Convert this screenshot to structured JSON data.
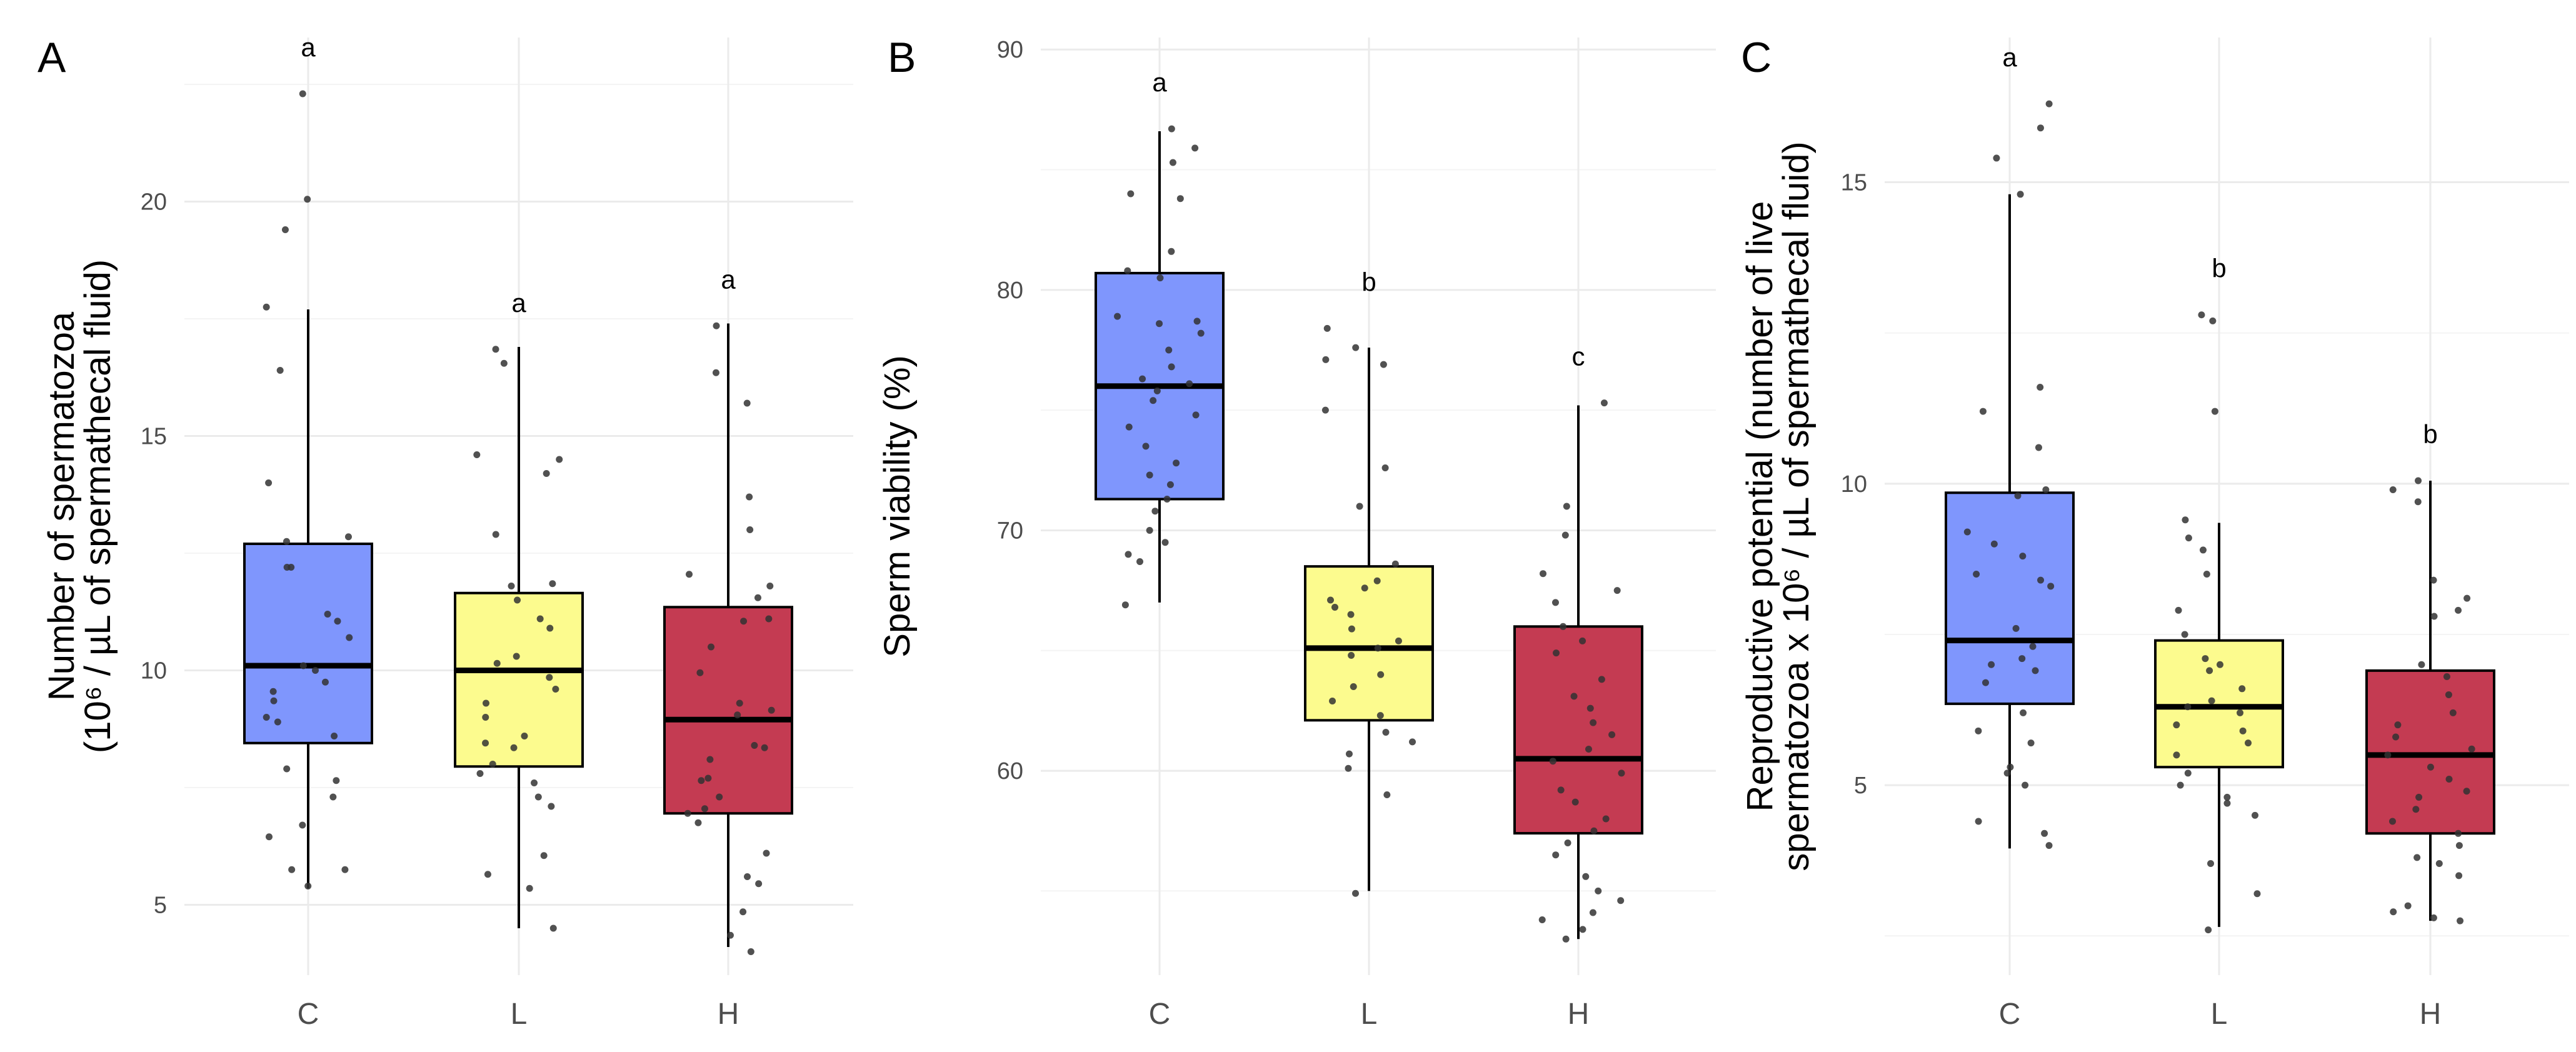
{
  "colors": {
    "C": "#7f96fd",
    "L": "#fcfb8e",
    "H": "#c43b52",
    "grid": "#ebebeb",
    "point": "#333333",
    "box_stroke": "#000000"
  },
  "chart_data": [
    {
      "type": "box",
      "panel": "A",
      "categories": [
        "C",
        "L",
        "H"
      ],
      "ylabel": [
        "Number of spermatozoa",
        "(10⁶ / µL of spermathecal fluid)"
      ],
      "ylim": [
        3.5,
        23.5
      ],
      "yticks": [
        5,
        10,
        15,
        20
      ],
      "boxes": [
        {
          "q1": 8.45,
          "median": 10.1,
          "q3": 12.7,
          "whisker_low": 5.35,
          "whisker_high": 17.7,
          "letter": "a"
        },
        {
          "q1": 7.95,
          "median": 10.0,
          "q3": 11.65,
          "whisker_low": 4.5,
          "whisker_high": 16.9,
          "letter": "a"
        },
        {
          "q1": 6.95,
          "median": 8.95,
          "q3": 11.35,
          "whisker_low": 4.1,
          "whisker_high": 17.4,
          "letter": "a"
        }
      ],
      "points": [
        [
          22.3,
          20.05,
          19.4,
          17.75,
          16.4,
          14.0,
          12.85,
          12.75,
          12.2,
          12.2,
          11.2,
          11.05,
          10.7,
          10.1,
          10.0,
          9.75,
          9.55,
          9.35,
          9.0,
          8.9,
          8.6,
          7.9,
          7.65,
          7.3,
          6.7,
          6.45,
          5.75,
          5.75,
          5.4
        ],
        [
          16.85,
          16.55,
          14.6,
          14.5,
          14.2,
          12.9,
          11.85,
          11.8,
          11.5,
          11.1,
          10.9,
          10.3,
          10.15,
          9.85,
          9.6,
          9.3,
          9.0,
          8.6,
          8.45,
          8.35,
          8.0,
          7.8,
          7.6,
          7.3,
          7.1,
          6.05,
          5.65,
          5.35,
          4.5
        ],
        [
          17.35,
          16.35,
          15.7,
          13.7,
          13.0,
          12.05,
          11.8,
          11.55,
          11.1,
          11.05,
          10.5,
          9.95,
          9.3,
          9.15,
          9.05,
          8.4,
          8.35,
          8.1,
          7.7,
          7.65,
          7.3,
          7.05,
          6.95,
          6.75,
          6.1,
          5.6,
          5.45,
          4.85,
          4.35,
          4.0
        ]
      ]
    },
    {
      "type": "box",
      "panel": "B",
      "categories": [
        "C",
        "L",
        "H"
      ],
      "ylabel": [
        "Sperm viability (%)"
      ],
      "ylim": [
        51.5,
        90.5
      ],
      "yticks": [
        60,
        70,
        80,
        90
      ],
      "boxes": [
        {
          "q1": 71.3,
          "median": 76.0,
          "q3": 80.7,
          "whisker_low": 67.0,
          "whisker_high": 86.6,
          "letter": "a"
        },
        {
          "q1": 62.1,
          "median": 65.1,
          "q3": 68.5,
          "whisker_low": 55.0,
          "whisker_high": 77.6,
          "letter": "b"
        },
        {
          "q1": 57.4,
          "median": 60.5,
          "q3": 66.0,
          "whisker_low": 53.0,
          "whisker_high": 75.2,
          "letter": "c"
        }
      ],
      "points": [
        [
          86.7,
          85.9,
          85.3,
          84.0,
          83.8,
          81.6,
          80.8,
          80.5,
          78.9,
          78.7,
          78.6,
          78.2,
          77.5,
          76.8,
          76.3,
          76.1,
          75.8,
          75.4,
          74.8,
          74.3,
          73.5,
          72.8,
          72.3,
          71.9,
          71.3,
          70.8,
          70.0,
          69.5,
          69.0,
          68.7,
          66.9
        ],
        [
          78.4,
          77.6,
          77.1,
          76.9,
          75.0,
          72.6,
          71.0,
          68.6,
          67.9,
          67.6,
          67.1,
          66.8,
          66.5,
          65.9,
          65.4,
          65.1,
          64.8,
          64.0,
          63.5,
          62.9,
          62.3,
          61.6,
          61.2,
          60.7,
          60.1,
          59.0,
          54.9
        ],
        [
          75.3,
          71.0,
          69.8,
          68.2,
          67.5,
          67.0,
          66.0,
          65.4,
          64.9,
          63.8,
          63.1,
          62.6,
          62.0,
          61.5,
          60.9,
          60.4,
          59.9,
          59.2,
          58.7,
          58.0,
          57.5,
          57.0,
          56.5,
          55.6,
          55.0,
          54.6,
          54.1,
          53.8,
          53.4,
          53.0
        ]
      ]
    },
    {
      "type": "box",
      "panel": "C",
      "categories": [
        "C",
        "L",
        "H"
      ],
      "ylabel": [
        "Reproductive potential (number of live",
        "spermatozoa x 10⁶ / µL of spermathecal fluid)"
      ],
      "ylim": [
        1.85,
        17.4
      ],
      "yticks": [
        5,
        10,
        15
      ],
      "boxes": [
        {
          "q1": 6.35,
          "median": 7.4,
          "q3": 9.85,
          "whisker_low": 3.95,
          "whisker_high": 14.8,
          "letter": "a"
        },
        {
          "q1": 5.3,
          "median": 6.3,
          "q3": 7.4,
          "whisker_low": 2.65,
          "whisker_high": 9.35,
          "letter": "b"
        },
        {
          "q1": 4.2,
          "median": 5.5,
          "q3": 6.9,
          "whisker_low": 2.75,
          "whisker_high": 10.05,
          "letter": "b"
        }
      ],
      "points": [
        [
          16.3,
          15.9,
          15.4,
          14.8,
          11.6,
          11.2,
          10.6,
          9.9,
          9.8,
          9.2,
          9.0,
          8.8,
          8.5,
          8.4,
          8.3,
          7.6,
          7.3,
          7.1,
          7.0,
          6.9,
          6.7,
          6.2,
          5.9,
          5.7,
          5.3,
          5.2,
          5.0,
          4.4,
          4.2,
          4.0
        ],
        [
          12.8,
          12.7,
          11.2,
          9.4,
          9.1,
          8.9,
          8.5,
          7.9,
          7.5,
          7.1,
          7.0,
          6.9,
          6.6,
          6.4,
          6.3,
          6.2,
          6.0,
          5.9,
          5.7,
          5.5,
          5.2,
          5.0,
          4.8,
          4.7,
          4.5,
          3.7,
          3.2,
          2.6
        ],
        [
          10.05,
          9.9,
          9.7,
          8.4,
          8.1,
          7.9,
          7.8,
          7.0,
          6.8,
          6.5,
          6.2,
          6.0,
          5.8,
          5.6,
          5.5,
          5.3,
          5.1,
          4.9,
          4.8,
          4.6,
          4.4,
          4.2,
          4.0,
          3.8,
          3.7,
          3.5,
          3.0,
          2.9,
          2.8,
          2.75
        ]
      ]
    }
  ]
}
